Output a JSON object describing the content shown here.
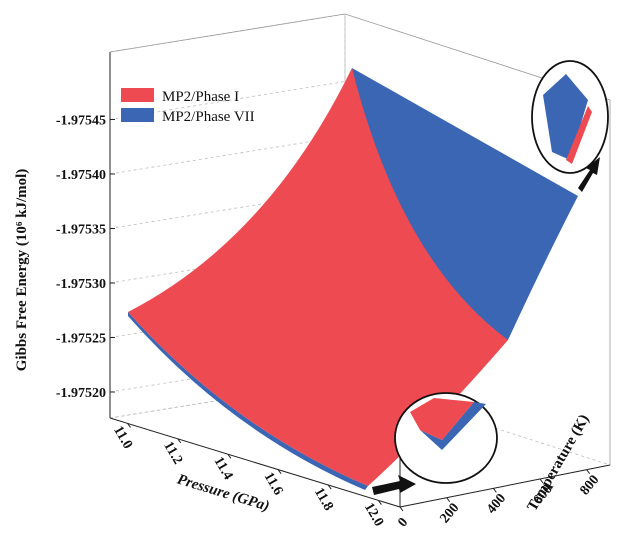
{
  "chart_data": {
    "type": "surface3d",
    "title": "",
    "zlabel": "Gibbs Free Energy (10⁶ kJ/mol)",
    "xlabel": "Pressure (GPa)",
    "ylabel": "Temperature (K)",
    "xlim": [
      11.0,
      12.0
    ],
    "ylim": [
      0,
      900
    ],
    "zlim": [
      -1.975185,
      -1.975475
    ],
    "z_ticks": [
      "-1.97520",
      "-1.97525",
      "-1.97530",
      "-1.97535",
      "-1.97540",
      "-1.97545"
    ],
    "x_ticks": [
      "11.0",
      "11.2",
      "11.4",
      "11.6",
      "11.8",
      "12.0"
    ],
    "y_ticks": [
      "0",
      "200",
      "400",
      "600",
      "800"
    ],
    "grid": true,
    "legend_position": "top-left",
    "series": [
      {
        "name": "MP2/Phase I",
        "color": "#ee4a52",
        "corner_values": {
          "P11.0_T0": -1.9752,
          "P12.0_T0": -1.97517,
          "P11.0_T900": -1.97547,
          "P12.0_T900": -1.97524
        }
      },
      {
        "name": "MP2/Phase VII",
        "color": "#3a66b4",
        "corner_values": {
          "P11.0_T0": -1.9752,
          "P12.0_T0": -1.97517,
          "P11.0_T900": -1.97546,
          "P12.0_T900": -1.9754
        }
      }
    ]
  }
}
